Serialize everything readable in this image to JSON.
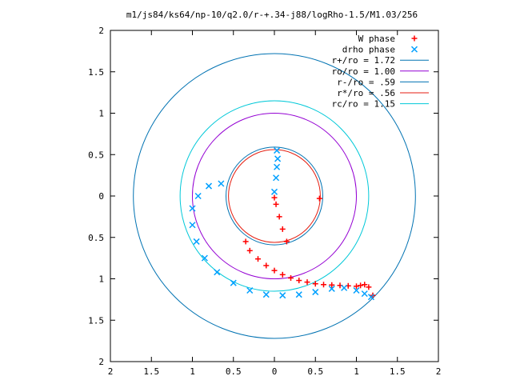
{
  "chart_data": {
    "type": "scatter",
    "title": "m1/js84/ks64/np-10/q2.0/r-+.34-j88/logRho-1.5/M1.03/256",
    "xlabel": "",
    "ylabel": "",
    "xlim": [
      -2,
      2
    ],
    "ylim": [
      -2,
      2
    ],
    "x_ticks": [
      -2,
      -1.5,
      -1,
      -0.5,
      0,
      0.5,
      1,
      1.5,
      2
    ],
    "y_ticks": [
      -2,
      -1.5,
      -1,
      -0.5,
      0,
      0.5,
      1,
      1.5,
      2
    ],
    "x_tick_labels": [
      "2",
      "1.5",
      "1",
      "0.5",
      "0",
      "0.5",
      "1",
      "1.5",
      "2"
    ],
    "y_tick_labels": [
      "2",
      "1.5",
      "1",
      "0.5",
      "0",
      "0.5",
      "1",
      "1.5",
      "2"
    ],
    "grid": false,
    "legend_position": "top-right",
    "circles": [
      {
        "name": "r+/ro = 1.72",
        "radius": 1.72,
        "color": "#0072b2"
      },
      {
        "name": "ro/ro = 1.00",
        "radius": 1.0,
        "color": "#9400d3"
      },
      {
        "name": "r-/ro = .59",
        "radius": 0.59,
        "color": "#0072b2"
      },
      {
        "name": "r*/ro = .56",
        "radius": 0.56,
        "color": "#e51e10"
      },
      {
        "name": "rc/ro = 1.15",
        "radius": 1.15,
        "color": "#00c8d8"
      }
    ],
    "series": [
      {
        "name": "W phase",
        "marker": "plus",
        "color": "#ff0000",
        "points": [
          [
            0.55,
            -0.03
          ],
          [
            0.15,
            -0.55
          ],
          [
            0.1,
            -0.4
          ],
          [
            0.06,
            -0.25
          ],
          [
            0.02,
            -0.1
          ],
          [
            0.0,
            -0.02
          ],
          [
            -0.35,
            -0.55
          ],
          [
            -0.3,
            -0.66
          ],
          [
            -0.2,
            -0.76
          ],
          [
            -0.1,
            -0.84
          ],
          [
            0.0,
            -0.9
          ],
          [
            0.1,
            -0.95
          ],
          [
            0.2,
            -0.99
          ],
          [
            0.3,
            -1.02
          ],
          [
            0.4,
            -1.04
          ],
          [
            0.5,
            -1.06
          ],
          [
            0.6,
            -1.07
          ],
          [
            0.7,
            -1.075
          ],
          [
            0.8,
            -1.08
          ],
          [
            0.9,
            -1.085
          ],
          [
            1.0,
            -1.09
          ],
          [
            1.05,
            -1.08
          ],
          [
            1.1,
            -1.07
          ],
          [
            1.15,
            -1.1
          ],
          [
            1.2,
            -1.2
          ]
        ]
      },
      {
        "name": "drho phase",
        "marker": "cross",
        "color": "#00a0ff",
        "points": [
          [
            0.03,
            0.55
          ],
          [
            0.04,
            0.45
          ],
          [
            0.03,
            0.35
          ],
          [
            0.02,
            0.22
          ],
          [
            0.0,
            0.05
          ],
          [
            -0.65,
            0.15
          ],
          [
            -0.8,
            0.12
          ],
          [
            -0.93,
            0.0
          ],
          [
            -1.0,
            -0.15
          ],
          [
            -1.0,
            -0.35
          ],
          [
            -0.95,
            -0.55
          ],
          [
            -0.85,
            -0.75
          ],
          [
            -0.7,
            -0.92
          ],
          [
            -0.5,
            -1.05
          ],
          [
            -0.3,
            -1.14
          ],
          [
            -0.1,
            -1.19
          ],
          [
            0.1,
            -1.2
          ],
          [
            0.3,
            -1.19
          ],
          [
            0.5,
            -1.16
          ],
          [
            0.7,
            -1.12
          ],
          [
            0.85,
            -1.11
          ],
          [
            1.0,
            -1.14
          ],
          [
            1.1,
            -1.18
          ],
          [
            1.18,
            -1.22
          ]
        ]
      }
    ]
  }
}
